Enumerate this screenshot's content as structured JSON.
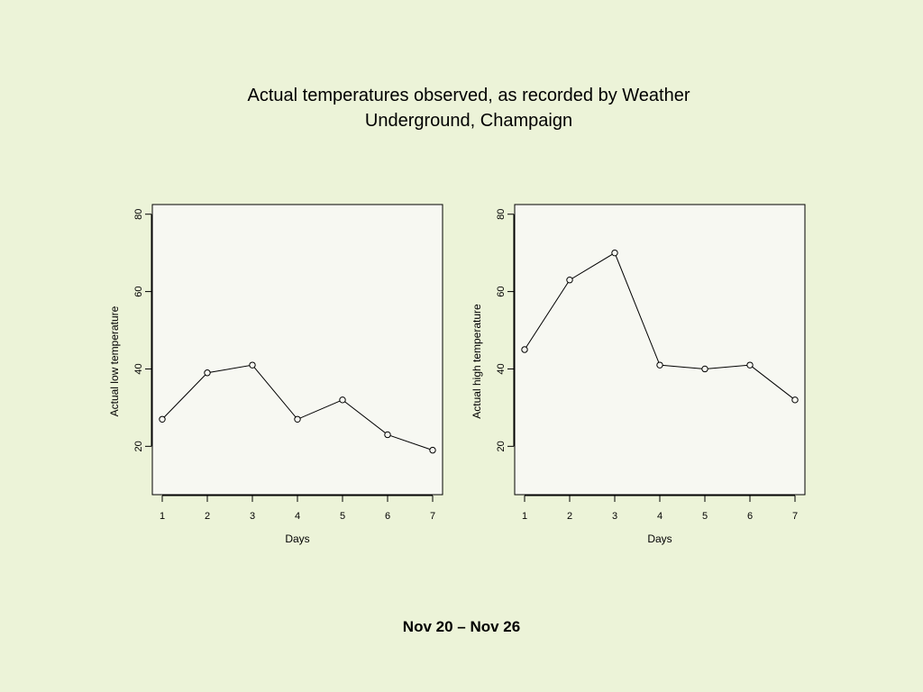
{
  "title": {
    "line1": "Actual temperatures observed, as recorded by Weather",
    "line2": "Underground, Champaign"
  },
  "footer": "Nov 20 – Nov 26",
  "colors": {
    "background": "#ecf3d8",
    "plot_background": "#f7f8f2",
    "line": "#000000"
  },
  "chart_data": [
    {
      "type": "line",
      "xlabel": "Days",
      "ylabel": "Actual low temperature",
      "x": [
        1,
        2,
        3,
        4,
        5,
        6,
        7
      ],
      "y": [
        27,
        39,
        41,
        27,
        32,
        23,
        19
      ],
      "x_ticks": [
        1,
        2,
        3,
        4,
        5,
        6,
        7
      ],
      "y_ticks": [
        20,
        40,
        60,
        80
      ],
      "xlim": [
        0.78,
        7.22
      ],
      "ylim": [
        7.5,
        82.5
      ],
      "marker": "open-circle",
      "grid": false
    },
    {
      "type": "line",
      "xlabel": "Days",
      "ylabel": "Actual high temperature",
      "x": [
        1,
        2,
        3,
        4,
        5,
        6,
        7
      ],
      "y": [
        45,
        63,
        70,
        41,
        40,
        41,
        32
      ],
      "x_ticks": [
        1,
        2,
        3,
        4,
        5,
        6,
        7
      ],
      "y_ticks": [
        20,
        40,
        60,
        80
      ],
      "xlim": [
        0.78,
        7.22
      ],
      "ylim": [
        7.5,
        82.5
      ],
      "marker": "open-circle",
      "grid": false
    }
  ]
}
